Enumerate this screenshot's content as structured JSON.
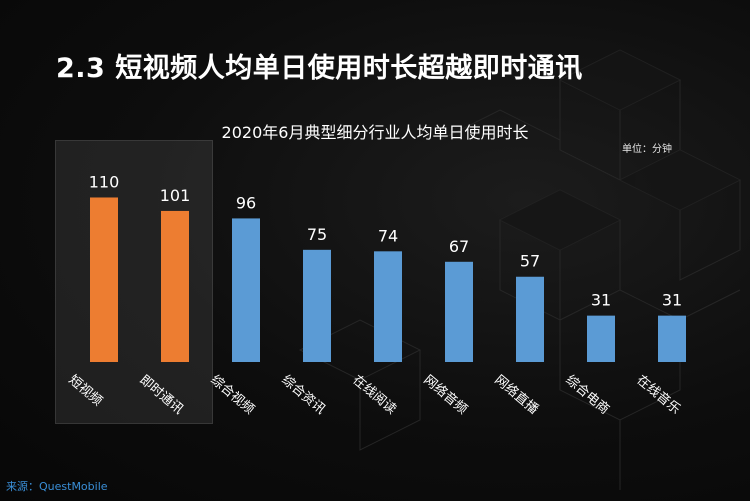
{
  "slide": {
    "title": "2.3 短视频人均单日使用时长超越即时通讯",
    "source": "来源：QuestMobile"
  },
  "chart_data": {
    "type": "bar",
    "title": "2020年6月典型细分行业人均单日使用时长",
    "unit_note": "单位：分钟",
    "categories": [
      "短视频",
      "即时通讯",
      "综合视频",
      "综合资讯",
      "在线阅读",
      "网络音频",
      "网络直播",
      "综合电商",
      "在线音乐"
    ],
    "values": [
      110,
      101,
      96,
      75,
      74,
      67,
      57,
      31,
      31
    ],
    "data_labels": [
      "110",
      "101",
      "96",
      "75",
      "74",
      "67",
      "57",
      "31",
      "31"
    ],
    "ylim": [
      0,
      115
    ],
    "grid": false,
    "highlighted_categories": [
      "短视频",
      "即时通讯"
    ],
    "colors": {
      "highlight_bar": "#ed7d31",
      "default_bar": "#5b9bd5",
      "text": "#ffffff"
    }
  }
}
